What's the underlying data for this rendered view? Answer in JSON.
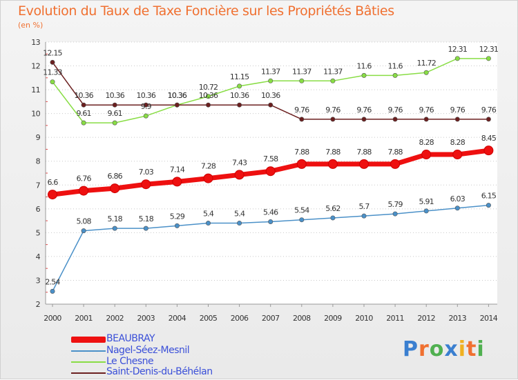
{
  "title": "Evolution du Taux de Taxe Foncière sur les Propriétés Bâties",
  "unit": "(en %)",
  "logo": {
    "letters": [
      "P",
      "r",
      "o",
      "x",
      "i",
      "t",
      "i"
    ],
    "colors": [
      "#3a7fd0",
      "#f07030",
      "#50b050",
      "#3a7fd0",
      "#f0b020",
      "#f07030",
      "#50b050"
    ]
  },
  "chart_data": {
    "type": "line",
    "title": "Evolution du Taux de Taxe Foncière sur les Propriétés Bâties",
    "ylabel": "(en %)",
    "xlabel": "",
    "ylim": [
      2,
      13
    ],
    "yticks": [
      2,
      3,
      4,
      5,
      6,
      7,
      8,
      9,
      10,
      11,
      12,
      13
    ],
    "x": [
      "2000",
      "2001",
      "2002",
      "2003",
      "2004",
      "2005",
      "2006",
      "2007",
      "2008",
      "2009",
      "2010",
      "2011",
      "2012",
      "2013",
      "2014"
    ],
    "legend_position": "bottom-left",
    "series": [
      {
        "key": "beaubray",
        "name": "BEAUBRAY",
        "color": "#ee1010",
        "values": [
          6.6,
          6.76,
          6.86,
          7.03,
          7.14,
          7.28,
          7.43,
          7.58,
          7.88,
          7.88,
          7.88,
          7.88,
          8.28,
          8.28,
          8.45
        ]
      },
      {
        "key": "nagel",
        "name": "Nagel-Séez-Mesnil",
        "color": "#4a90c8",
        "values": [
          2.54,
          5.08,
          5.18,
          5.18,
          5.29,
          5.4,
          5.4,
          5.46,
          5.54,
          5.62,
          5.7,
          5.79,
          5.91,
          6.03,
          6.15
        ]
      },
      {
        "key": "chesne",
        "name": "Le Chesne",
        "color": "#88dd44",
        "values": [
          11.33,
          9.61,
          9.61,
          9.9,
          10.36,
          10.72,
          11.15,
          11.37,
          11.37,
          11.37,
          11.6,
          11.6,
          11.72,
          12.31,
          12.31
        ]
      },
      {
        "key": "stdenis",
        "name": "Saint-Denis-du-Béhélan",
        "color": "#6b1f1f",
        "values": [
          12.15,
          10.36,
          10.36,
          10.36,
          10.36,
          10.36,
          10.36,
          10.36,
          9.76,
          9.76,
          9.76,
          9.76,
          9.76,
          9.76,
          9.76
        ]
      }
    ]
  }
}
